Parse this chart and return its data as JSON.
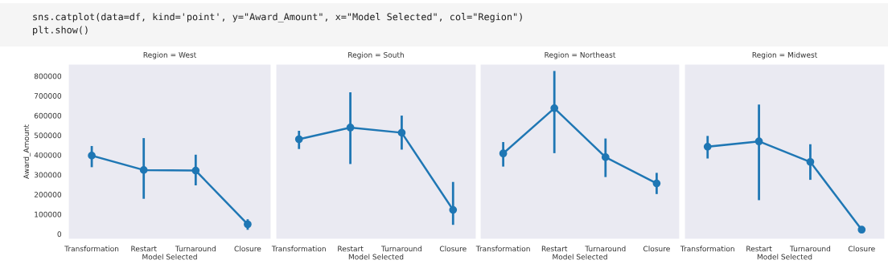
{
  "chart_data": [
    {
      "type": "line",
      "title": "Region = West",
      "xlabel": "Model Selected",
      "ylabel": "Award_Amount",
      "categories": [
        "Transformation",
        "Restart",
        "Turnaround",
        "Closure"
      ],
      "marker": "circle",
      "grid": false,
      "ylim": [
        -26000,
        860000
      ],
      "yticks": [
        0,
        100000,
        200000,
        300000,
        400000,
        500000,
        600000,
        700000,
        800000
      ],
      "series": [
        {
          "color": "#1f77b4",
          "values": [
            397000,
            324000,
            321000,
            49000
          ],
          "errors": [
            [
              344000,
              440000
            ],
            [
              184000,
              480000
            ],
            [
              252000,
              396000
            ],
            [
              27000,
              69000
            ]
          ]
        }
      ],
      "annotations": [
        "sns.catplot(data=df, kind='point', y=\"Award_Amount\", x=\"Model Selected\", col=\"Region\")\nplt.show()"
      ]
    },
    {
      "type": "line",
      "title": "Region = South",
      "xlabel": "Model Selected",
      "categories": [
        "Transformation",
        "Restart",
        "Turnaround",
        "Closure"
      ],
      "marker": "circle",
      "grid": false,
      "ylim": [
        -26000,
        860000
      ],
      "yticks": [
        0,
        100000,
        200000,
        300000,
        400000,
        500000,
        600000,
        700000,
        800000
      ],
      "tick_labels": "x",
      "series": [
        {
          "color": "#1f77b4",
          "values": [
            480000,
            539000,
            513000,
            122000
          ],
          "errors": [
            [
              436000,
              517000
            ],
            [
              360000,
              712000
            ],
            [
              433000,
              594000
            ],
            [
              52000,
              258000
            ]
          ]
        }
      ]
    },
    {
      "type": "line",
      "title": "Region = Northeast",
      "xlabel": "Model Selected",
      "categories": [
        "Transformation",
        "Restart",
        "Turnaround",
        "Closure"
      ],
      "marker": "circle",
      "grid": false,
      "ylim": [
        -26000,
        860000
      ],
      "yticks": [
        0,
        100000,
        200000,
        300000,
        400000,
        500000,
        600000,
        700000,
        800000
      ],
      "tick_labels": "x",
      "series": [
        {
          "color": "#1f77b4",
          "values": [
            408000,
            637000,
            389000,
            256000
          ],
          "errors": [
            [
              347000,
              460000
            ],
            [
              415000,
              820000
            ],
            [
              294000,
              478000
            ],
            [
              208000,
              304000
            ]
          ]
        }
      ]
    },
    {
      "type": "line",
      "title": "Region = Midwest",
      "xlabel": "Model Selected",
      "categories": [
        "Transformation",
        "Restart",
        "Turnaround",
        "Closure"
      ],
      "marker": "circle",
      "grid": false,
      "ylim": [
        -26000,
        860000
      ],
      "yticks": [
        0,
        100000,
        200000,
        300000,
        400000,
        500000,
        600000,
        700000,
        800000
      ],
      "tick_labels": "x",
      "series": [
        {
          "color": "#1f77b4",
          "values": [
            442000,
            469000,
            365000,
            22000
          ],
          "errors": [
            [
              388000,
              491000
            ],
            [
              177000,
              650000
            ],
            [
              280000,
              449000
            ],
            [
              17000,
              26000
            ]
          ]
        }
      ]
    }
  ]
}
